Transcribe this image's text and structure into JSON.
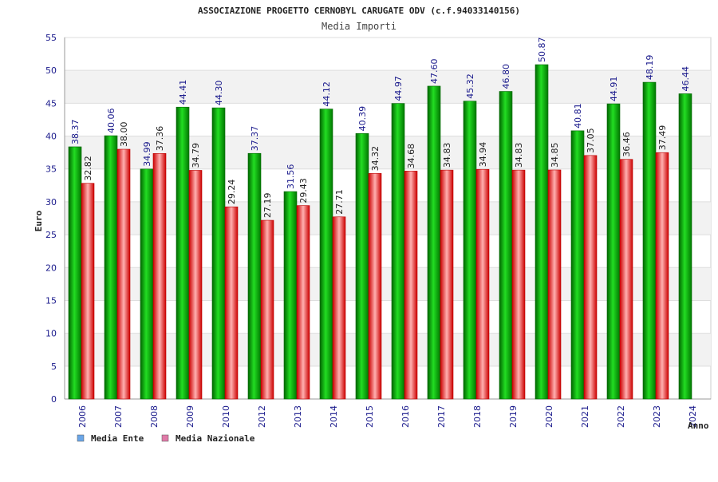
{
  "chart_data": {
    "type": "bar",
    "title": "ASSOCIAZIONE PROGETTO CERNOBYL CARUGATE ODV (c.f.94033140156)",
    "subtitle": "Media Importi",
    "xlabel": "Anno",
    "ylabel": "Euro",
    "ylim": [
      0,
      55
    ],
    "yticks": [
      0,
      5,
      10,
      15,
      20,
      25,
      30,
      35,
      40,
      45,
      50,
      55
    ],
    "grid": true,
    "legend_position": "bottom-left",
    "categories": [
      "2006",
      "2007",
      "2008",
      "2009",
      "2010",
      "2012",
      "2013",
      "2014",
      "2015",
      "2016",
      "2017",
      "2018",
      "2019",
      "2020",
      "2021",
      "2022",
      "2023",
      "2024"
    ],
    "series": [
      {
        "name": "Media Ente",
        "color": "#00b000",
        "legend_color": "#6aa6e8",
        "values": [
          38.37,
          40.06,
          34.99,
          44.41,
          44.3,
          37.37,
          31.56,
          44.12,
          40.39,
          44.97,
          47.6,
          45.32,
          46.8,
          50.87,
          40.81,
          44.91,
          48.19,
          46.44
        ],
        "labels": [
          "38.37",
          "40.06",
          "34.99",
          "44.41",
          "44.30",
          "37.37",
          "31.56",
          "44.12",
          "40.39",
          "44.97",
          "47.60",
          "45.32",
          "46.80",
          "50.87",
          "40.81",
          "44.91",
          "48.19",
          "46.44"
        ]
      },
      {
        "name": "Media Nazionale",
        "color": "#e02020",
        "legend_color": "#e07aa8",
        "values": [
          32.82,
          38.0,
          37.36,
          34.79,
          29.24,
          27.19,
          29.43,
          27.71,
          34.32,
          34.68,
          34.83,
          34.94,
          34.83,
          34.85,
          37.05,
          36.46,
          37.49,
          null
        ],
        "labels": [
          "32.82",
          "38.00",
          "37.36",
          "34.79",
          "29.24",
          "27.19",
          "29.43",
          "27.71",
          "34.32",
          "34.68",
          "34.83",
          "34.94",
          "34.83",
          "34.85",
          "37.05",
          "36.46",
          "37.49",
          ""
        ]
      }
    ]
  }
}
